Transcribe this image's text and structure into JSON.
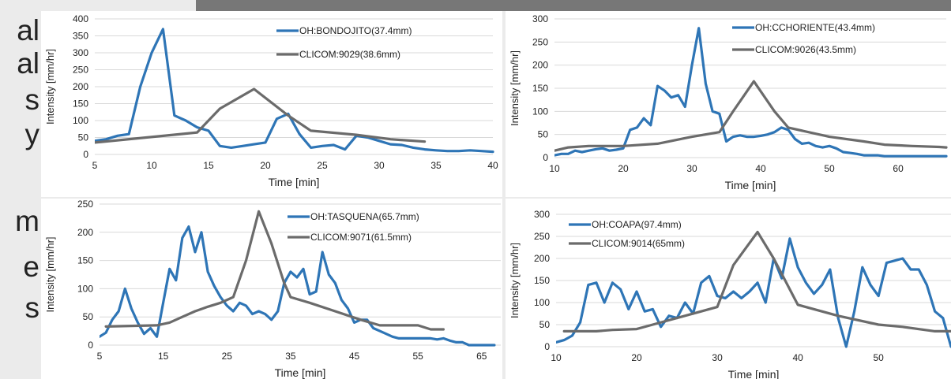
{
  "side_text": [
    "al",
    "al",
    "s",
    "y",
    "m",
    "e",
    "s"
  ],
  "colors": {
    "oh": "#2e75b6",
    "clicom": "#6b6b6b",
    "grid": "#d9d9d9",
    "background": "#ebebeb",
    "header": "#777777"
  },
  "chart_data": [
    {
      "type": "line",
      "xlabel": "Time [min]",
      "ylabel": "Intensity [mm/hr]",
      "xlim": [
        5,
        40
      ],
      "ylim": [
        0,
        400
      ],
      "xticks": [
        5,
        10,
        15,
        20,
        25,
        30,
        35,
        40
      ],
      "yticks": [
        0,
        50,
        100,
        150,
        200,
        250,
        300,
        350,
        400
      ],
      "grid": true,
      "legend_position": "top-right",
      "series": [
        {
          "name": "OH:BONDOJITO(37.4mm)",
          "color": "#2e75b6",
          "x": [
            5,
            6,
            7,
            8,
            9,
            10,
            11,
            12,
            13,
            14,
            15,
            16,
            17,
            18,
            19,
            20,
            21,
            22,
            23,
            24,
            25,
            26,
            27,
            28,
            29,
            30,
            31,
            32,
            33,
            34,
            35,
            36,
            37,
            38,
            39,
            40
          ],
          "y": [
            40,
            45,
            55,
            60,
            200,
            300,
            370,
            115,
            100,
            80,
            70,
            25,
            20,
            25,
            30,
            35,
            105,
            120,
            60,
            20,
            25,
            28,
            15,
            55,
            50,
            40,
            30,
            28,
            20,
            15,
            12,
            10,
            10,
            12,
            10,
            8
          ]
        },
        {
          "name": "CLICOM:9029(38.6mm)",
          "color": "#6b6b6b",
          "x": [
            5,
            14,
            16,
            19,
            22,
            24,
            28,
            31,
            34
          ],
          "y": [
            35,
            65,
            135,
            193,
            115,
            70,
            58,
            45,
            38
          ]
        }
      ]
    },
    {
      "type": "line",
      "xlabel": "Time [min]",
      "ylabel": "Intensity [mm/hr]",
      "xlim": [
        10,
        67
      ],
      "ylim": [
        0,
        300
      ],
      "xticks": [
        10,
        20,
        30,
        40,
        50,
        60
      ],
      "yticks": [
        0,
        50,
        100,
        150,
        200,
        250,
        300
      ],
      "grid": true,
      "legend_position": "top-right",
      "series": [
        {
          "name": "OH:CCHORIENTE(43.4mm)",
          "color": "#2e75b6",
          "x": [
            10,
            11,
            12,
            13,
            14,
            15,
            16,
            17,
            18,
            19,
            20,
            21,
            22,
            23,
            24,
            25,
            26,
            27,
            28,
            29,
            30,
            31,
            32,
            33,
            34,
            35,
            36,
            37,
            38,
            39,
            40,
            41,
            42,
            43,
            44,
            45,
            46,
            47,
            48,
            49,
            50,
            51,
            52,
            53,
            54,
            55,
            56,
            57,
            58,
            59,
            60,
            61,
            62,
            63,
            64,
            65,
            66,
            67
          ],
          "y": [
            5,
            8,
            8,
            15,
            12,
            15,
            18,
            20,
            15,
            17,
            20,
            60,
            65,
            85,
            70,
            155,
            145,
            130,
            135,
            110,
            200,
            280,
            160,
            100,
            95,
            35,
            45,
            48,
            45,
            45,
            47,
            50,
            55,
            65,
            60,
            40,
            30,
            32,
            25,
            22,
            25,
            20,
            12,
            10,
            8,
            5,
            5,
            5,
            3,
            3,
            3,
            3,
            3,
            3,
            3,
            3,
            3,
            3
          ]
        },
        {
          "name": "CLICOM:9026(43.5mm)",
          "color": "#6b6b6b",
          "x": [
            10,
            12,
            15,
            20,
            25,
            30,
            34,
            36,
            39,
            42,
            44,
            50,
            55,
            58,
            62,
            66,
            67
          ],
          "y": [
            15,
            22,
            25,
            25,
            30,
            45,
            55,
            100,
            165,
            100,
            65,
            45,
            35,
            28,
            25,
            23,
            22
          ]
        }
      ]
    },
    {
      "type": "line",
      "xlabel": "Time [min]",
      "ylabel": "Intensity [mm/hr]",
      "xlim": [
        5,
        68
      ],
      "ylim": [
        0,
        250
      ],
      "xticks": [
        5,
        15,
        25,
        35,
        45,
        55,
        65
      ],
      "yticks": [
        0,
        50,
        100,
        150,
        200,
        250
      ],
      "grid": true,
      "legend_position": "top-right",
      "series": [
        {
          "name": "OH:TASQUENA(65.7mm)",
          "color": "#2e75b6",
          "x": [
            5,
            6,
            7,
            8,
            9,
            10,
            11,
            12,
            13,
            14,
            15,
            16,
            17,
            18,
            19,
            20,
            21,
            22,
            23,
            24,
            25,
            26,
            27,
            28,
            29,
            30,
            31,
            32,
            33,
            34,
            35,
            36,
            37,
            38,
            39,
            40,
            41,
            42,
            43,
            44,
            45,
            46,
            47,
            48,
            49,
            50,
            51,
            52,
            53,
            54,
            55,
            56,
            57,
            58,
            59,
            60,
            61,
            62,
            63,
            64,
            65,
            66,
            67
          ],
          "y": [
            15,
            22,
            45,
            60,
            100,
            65,
            40,
            20,
            30,
            15,
            75,
            135,
            115,
            190,
            210,
            165,
            200,
            130,
            105,
            85,
            70,
            60,
            75,
            70,
            55,
            60,
            55,
            45,
            60,
            110,
            130,
            120,
            135,
            90,
            95,
            165,
            125,
            110,
            80,
            65,
            40,
            45,
            45,
            30,
            25,
            20,
            15,
            12,
            12,
            12,
            12,
            12,
            12,
            10,
            12,
            8,
            5,
            5,
            0,
            0,
            0,
            0,
            0
          ]
        },
        {
          "name": "CLICOM:9071(61.5mm)",
          "color": "#6b6b6b",
          "x": [
            6,
            14,
            16,
            18,
            20,
            22,
            24,
            26,
            28,
            30,
            32,
            34,
            35,
            38,
            42,
            46,
            49,
            55,
            57,
            59
          ],
          "y": [
            33,
            35,
            40,
            50,
            60,
            68,
            75,
            85,
            150,
            237,
            180,
            110,
            85,
            75,
            60,
            45,
            35,
            35,
            28,
            28
          ]
        }
      ]
    },
    {
      "type": "line",
      "xlabel": "Time [min]",
      "ylabel": "Intensity [mm/hr]",
      "xlim": [
        10,
        59
      ],
      "ylim": [
        0,
        300
      ],
      "xticks": [
        10,
        20,
        30,
        40,
        50
      ],
      "yticks": [
        0,
        50,
        100,
        150,
        200,
        250,
        300
      ],
      "grid": true,
      "legend_position": "top-left",
      "series": [
        {
          "name": "OH:COAPA(97.4mm)",
          "color": "#2e75b6",
          "x": [
            10,
            11,
            12,
            13,
            14,
            15,
            16,
            17,
            18,
            19,
            20,
            21,
            22,
            23,
            24,
            25,
            26,
            27,
            28,
            29,
            30,
            31,
            32,
            33,
            34,
            35,
            36,
            37,
            38,
            39,
            40,
            41,
            42,
            43,
            44,
            45,
            46,
            47,
            48,
            49,
            50,
            51,
            52,
            53,
            54,
            55,
            56,
            57,
            58,
            59
          ],
          "y": [
            10,
            15,
            25,
            55,
            140,
            145,
            100,
            145,
            130,
            85,
            125,
            80,
            85,
            45,
            70,
            65,
            100,
            75,
            145,
            160,
            115,
            110,
            125,
            110,
            125,
            145,
            100,
            200,
            155,
            245,
            180,
            145,
            120,
            140,
            175,
            65,
            0,
            80,
            180,
            140,
            115,
            190,
            195,
            200,
            175,
            175,
            140,
            80,
            65,
            0
          ]
        },
        {
          "name": "CLICOM:9014(65mm)",
          "color": "#6b6b6b",
          "x": [
            11,
            15,
            17,
            20,
            22,
            25,
            28,
            30,
            32,
            35,
            37,
            40,
            45,
            50,
            53,
            57,
            59
          ],
          "y": [
            35,
            35,
            38,
            40,
            50,
            65,
            80,
            90,
            185,
            260,
            200,
            95,
            70,
            50,
            45,
            35,
            35
          ]
        }
      ]
    }
  ]
}
